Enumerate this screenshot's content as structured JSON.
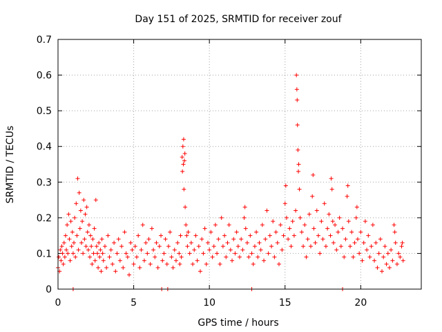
{
  "chart_data": {
    "type": "scatter",
    "title": "Day 151 of 2025, SRMTID for receiver zouf",
    "xlabel": "GPS time / hours",
    "ylabel": "SRMTID / TECUs",
    "xlim": [
      0,
      24
    ],
    "ylim": [
      0,
      0.7
    ],
    "xticks": [
      "0",
      "5",
      "10",
      "15",
      "20"
    ],
    "yticks": [
      "0",
      "0.1",
      "0.2",
      "0.3",
      "0.4",
      "0.5",
      "0.6",
      "0.7"
    ],
    "grid": true,
    "marker": "+",
    "series": [
      {
        "name": "SRMTID",
        "color": "#ff0000",
        "points": [
          [
            0.0,
            0.06
          ],
          [
            0.05,
            0.09
          ],
          [
            0.1,
            0.05
          ],
          [
            0.15,
            0.11
          ],
          [
            0.2,
            0.08
          ],
          [
            0.25,
            0.12
          ],
          [
            0.3,
            0.1
          ],
          [
            0.35,
            0.07
          ],
          [
            0.4,
            0.13
          ],
          [
            0.45,
            0.09
          ],
          [
            0.5,
            0.15
          ],
          [
            0.55,
            0.11
          ],
          [
            0.6,
            0.18
          ],
          [
            0.65,
            0.1
          ],
          [
            0.7,
            0.21
          ],
          [
            0.75,
            0.14
          ],
          [
            0.8,
            0.08
          ],
          [
            0.85,
            0.19
          ],
          [
            0.9,
            0.12
          ],
          [
            0.95,
            0.16
          ],
          [
            1.0,
            0.1
          ],
          [
            1.05,
            0.13
          ],
          [
            1.1,
            0.2
          ],
          [
            1.15,
            0.09
          ],
          [
            1.2,
            0.24
          ],
          [
            1.25,
            0.15
          ],
          [
            1.3,
            0.31
          ],
          [
            1.35,
            0.11
          ],
          [
            1.4,
            0.27
          ],
          [
            1.45,
            0.17
          ],
          [
            1.5,
            0.22
          ],
          [
            1.55,
            0.13
          ],
          [
            1.6,
            0.19
          ],
          [
            1.65,
            0.1
          ],
          [
            1.7,
            0.25
          ],
          [
            1.75,
            0.14
          ],
          [
            1.8,
            0.21
          ],
          [
            1.85,
            0.12
          ],
          [
            1.9,
            0.23
          ],
          [
            1.95,
            0.16
          ],
          [
            2.0,
            0.11
          ],
          [
            2.05,
            0.18
          ],
          [
            2.1,
            0.09
          ],
          [
            2.15,
            0.15
          ],
          [
            2.2,
            0.12
          ],
          [
            2.25,
            0.07
          ],
          [
            2.3,
            0.14
          ],
          [
            2.35,
            0.1
          ],
          [
            2.4,
            0.17
          ],
          [
            2.45,
            0.08
          ],
          [
            2.5,
            0.25
          ],
          [
            2.55,
            0.12
          ],
          [
            2.6,
            0.1
          ],
          [
            2.65,
            0.06
          ],
          [
            2.7,
            0.13
          ],
          [
            2.75,
            0.09
          ],
          [
            2.8,
            0.11
          ],
          [
            2.85,
            0.05
          ],
          [
            2.9,
            0.14
          ],
          [
            2.95,
            0.1
          ],
          [
            3.0,
            0.08
          ],
          [
            3.1,
            0.12
          ],
          [
            3.2,
            0.06
          ],
          [
            3.3,
            0.15
          ],
          [
            3.4,
            0.09
          ],
          [
            3.5,
            0.11
          ],
          [
            3.6,
            0.07
          ],
          [
            3.7,
            0.13
          ],
          [
            3.8,
            0.05
          ],
          [
            3.9,
            0.1
          ],
          [
            4.0,
            0.14
          ],
          [
            4.1,
            0.08
          ],
          [
            4.2,
            0.12
          ],
          [
            4.3,
            0.06
          ],
          [
            4.4,
            0.16
          ],
          [
            4.5,
            0.1
          ],
          [
            4.6,
            0.09
          ],
          [
            4.7,
            0.04
          ],
          [
            4.8,
            0.13
          ],
          [
            4.9,
            0.11
          ],
          [
            5.0,
            0.07
          ],
          [
            5.1,
            0.12
          ],
          [
            5.2,
            0.09
          ],
          [
            5.3,
            0.15
          ],
          [
            5.4,
            0.06
          ],
          [
            5.5,
            0.11
          ],
          [
            5.6,
            0.18
          ],
          [
            5.7,
            0.08
          ],
          [
            5.8,
            0.13
          ],
          [
            5.9,
            0.1
          ],
          [
            6.0,
            0.14
          ],
          [
            6.1,
            0.07
          ],
          [
            6.2,
            0.17
          ],
          [
            6.3,
            0.11
          ],
          [
            6.4,
            0.09
          ],
          [
            6.5,
            0.13
          ],
          [
            6.6,
            0.06
          ],
          [
            6.7,
            0.12
          ],
          [
            6.8,
            0.15
          ],
          [
            6.9,
            0.08
          ],
          [
            7.0,
            0.1
          ],
          [
            7.1,
            0.14
          ],
          [
            7.2,
            0.07
          ],
          [
            7.3,
            0.12
          ],
          [
            7.4,
            0.16
          ],
          [
            7.5,
            0.09
          ],
          [
            7.6,
            0.06
          ],
          [
            7.7,
            0.11
          ],
          [
            7.8,
            0.08
          ],
          [
            7.9,
            0.13
          ],
          [
            8.0,
            0.1
          ],
          [
            8.05,
            0.07
          ],
          [
            8.1,
            0.15
          ],
          [
            8.15,
            0.09
          ],
          [
            8.2,
            0.37
          ],
          [
            8.22,
            0.33
          ],
          [
            8.25,
            0.4
          ],
          [
            8.28,
            0.35
          ],
          [
            8.3,
            0.42
          ],
          [
            8.32,
            0.28
          ],
          [
            8.35,
            0.36
          ],
          [
            8.38,
            0.38
          ],
          [
            8.4,
            0.23
          ],
          [
            8.45,
            0.18
          ],
          [
            8.5,
            0.15
          ],
          [
            8.55,
            0.12
          ],
          [
            8.6,
            0.16
          ],
          [
            8.7,
            0.1
          ],
          [
            8.8,
            0.13
          ],
          [
            8.9,
            0.07
          ],
          [
            9.0,
            0.11
          ],
          [
            9.1,
            0.15
          ],
          [
            9.2,
            0.08
          ],
          [
            9.3,
            0.12
          ],
          [
            9.4,
            0.05
          ],
          [
            9.5,
            0.14
          ],
          [
            9.6,
            0.1
          ],
          [
            9.7,
            0.17
          ],
          [
            9.8,
            0.07
          ],
          [
            9.9,
            0.13
          ],
          [
            10.0,
            0.11
          ],
          [
            10.1,
            0.16
          ],
          [
            10.2,
            0.09
          ],
          [
            10.3,
            0.12
          ],
          [
            10.4,
            0.18
          ],
          [
            10.5,
            0.1
          ],
          [
            10.6,
            0.14
          ],
          [
            10.7,
            0.07
          ],
          [
            10.8,
            0.2
          ],
          [
            10.9,
            0.12
          ],
          [
            11.0,
            0.15
          ],
          [
            11.1,
            0.09
          ],
          [
            11.2,
            0.13
          ],
          [
            11.3,
            0.18
          ],
          [
            11.4,
            0.11
          ],
          [
            11.5,
            0.08
          ],
          [
            11.6,
            0.14
          ],
          [
            11.7,
            0.1
          ],
          [
            11.8,
            0.16
          ],
          [
            11.9,
            0.12
          ],
          [
            12.0,
            0.09
          ],
          [
            12.1,
            0.14
          ],
          [
            12.2,
            0.11
          ],
          [
            12.3,
            0.2
          ],
          [
            12.35,
            0.23
          ],
          [
            12.4,
            0.17
          ],
          [
            12.5,
            0.13
          ],
          [
            12.6,
            0.09
          ],
          [
            12.7,
            0.15
          ],
          [
            12.8,
            0.1
          ],
          [
            12.9,
            0.07
          ],
          [
            13.0,
            0.12
          ],
          [
            13.1,
            0.16
          ],
          [
            13.2,
            0.09
          ],
          [
            13.3,
            0.13
          ],
          [
            13.4,
            0.11
          ],
          [
            13.5,
            0.18
          ],
          [
            13.6,
            0.08
          ],
          [
            13.7,
            0.14
          ],
          [
            13.8,
            0.22
          ],
          [
            13.9,
            0.1
          ],
          [
            14.0,
            0.15
          ],
          [
            14.1,
            0.12
          ],
          [
            14.2,
            0.19
          ],
          [
            14.3,
            0.09
          ],
          [
            14.4,
            0.16
          ],
          [
            14.5,
            0.13
          ],
          [
            14.6,
            0.07
          ],
          [
            14.7,
            0.18
          ],
          [
            14.8,
            0.11
          ],
          [
            14.9,
            0.15
          ],
          [
            15.0,
            0.24
          ],
          [
            15.05,
            0.29
          ],
          [
            15.1,
            0.2
          ],
          [
            15.2,
            0.14
          ],
          [
            15.3,
            0.17
          ],
          [
            15.4,
            0.12
          ],
          [
            15.5,
            0.19
          ],
          [
            15.6,
            0.15
          ],
          [
            15.7,
            0.22
          ],
          [
            15.75,
            0.6
          ],
          [
            15.78,
            0.56
          ],
          [
            15.8,
            0.53
          ],
          [
            15.82,
            0.46
          ],
          [
            15.85,
            0.39
          ],
          [
            15.88,
            0.33
          ],
          [
            15.9,
            0.35
          ],
          [
            15.95,
            0.28
          ],
          [
            16.0,
            0.2
          ],
          [
            16.1,
            0.16
          ],
          [
            16.2,
            0.12
          ],
          [
            16.3,
            0.18
          ],
          [
            16.4,
            0.09
          ],
          [
            16.5,
            0.14
          ],
          [
            16.6,
            0.21
          ],
          [
            16.7,
            0.12
          ],
          [
            16.8,
            0.26
          ],
          [
            16.85,
            0.32
          ],
          [
            16.9,
            0.17
          ],
          [
            17.0,
            0.13
          ],
          [
            17.1,
            0.22
          ],
          [
            17.2,
            0.15
          ],
          [
            17.3,
            0.1
          ],
          [
            17.4,
            0.19
          ],
          [
            17.5,
            0.14
          ],
          [
            17.6,
            0.24
          ],
          [
            17.7,
            0.12
          ],
          [
            17.8,
            0.17
          ],
          [
            17.9,
            0.21
          ],
          [
            18.0,
            0.15
          ],
          [
            18.05,
            0.31
          ],
          [
            18.1,
            0.28
          ],
          [
            18.15,
            0.19
          ],
          [
            18.2,
            0.13
          ],
          [
            18.3,
            0.18
          ],
          [
            18.4,
            0.11
          ],
          [
            18.5,
            0.16
          ],
          [
            18.6,
            0.2
          ],
          [
            18.7,
            0.12
          ],
          [
            18.8,
            0.17
          ],
          [
            18.9,
            0.09
          ],
          [
            19.0,
            0.14
          ],
          [
            19.1,
            0.26
          ],
          [
            19.15,
            0.29
          ],
          [
            19.2,
            0.19
          ],
          [
            19.3,
            0.12
          ],
          [
            19.4,
            0.16
          ],
          [
            19.5,
            0.09
          ],
          [
            19.6,
            0.13
          ],
          [
            19.7,
            0.2
          ],
          [
            19.75,
            0.23
          ],
          [
            19.8,
            0.14
          ],
          [
            19.9,
            0.1
          ],
          [
            20.0,
            0.16
          ],
          [
            20.1,
            0.08
          ],
          [
            20.2,
            0.13
          ],
          [
            20.3,
            0.19
          ],
          [
            20.4,
            0.11
          ],
          [
            20.5,
            0.15
          ],
          [
            20.6,
            0.09
          ],
          [
            20.7,
            0.12
          ],
          [
            20.8,
            0.18
          ],
          [
            20.9,
            0.08
          ],
          [
            21.0,
            0.13
          ],
          [
            21.1,
            0.06
          ],
          [
            21.2,
            0.1
          ],
          [
            21.3,
            0.14
          ],
          [
            21.4,
            0.05
          ],
          [
            21.5,
            0.09
          ],
          [
            21.6,
            0.12
          ],
          [
            21.7,
            0.07
          ],
          [
            21.8,
            0.1
          ],
          [
            21.9,
            0.06
          ],
          [
            22.0,
            0.11
          ],
          [
            22.1,
            0.08
          ],
          [
            22.2,
            0.18
          ],
          [
            22.25,
            0.16
          ],
          [
            22.3,
            0.13
          ],
          [
            22.4,
            0.07
          ],
          [
            22.5,
            0.1
          ],
          [
            22.6,
            0.09
          ],
          [
            22.7,
            0.12
          ],
          [
            22.75,
            0.13
          ],
          [
            22.8,
            0.08
          ],
          [
            1.0,
            0.0
          ],
          [
            6.85,
            0.0
          ],
          [
            7.25,
            0.0
          ],
          [
            12.8,
            0.0
          ],
          [
            18.8,
            0.0
          ]
        ]
      }
    ]
  }
}
